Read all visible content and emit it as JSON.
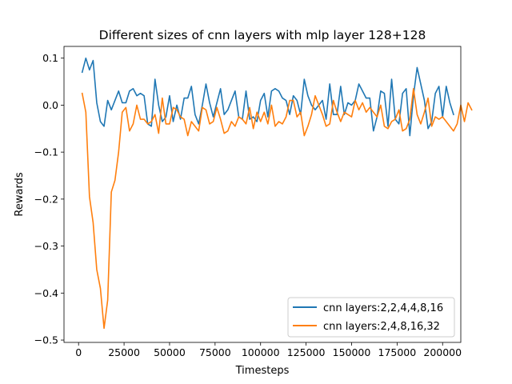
{
  "chart_data": {
    "type": "line",
    "title": "Different sizes of cnn layers with mlp layer 128+128",
    "xlabel": "Timesteps",
    "ylabel": "Rewards",
    "xlim": [
      -8000,
      210000
    ],
    "ylim": [
      -0.505,
      0.125
    ],
    "xticks": [
      0,
      25000,
      50000,
      75000,
      100000,
      125000,
      150000,
      175000,
      200000
    ],
    "xtick_labels": [
      "0",
      "25000",
      "50000",
      "75000",
      "100000",
      "125000",
      "150000",
      "175000",
      "200000"
    ],
    "yticks": [
      -0.5,
      -0.4,
      -0.3,
      -0.2,
      -0.1,
      0.0,
      0.1
    ],
    "ytick_labels": [
      "−0.5",
      "−0.4",
      "−0.3",
      "−0.2",
      "−0.1",
      "0.0",
      "0.1"
    ],
    "grid": false,
    "legend_position": "lower-right",
    "series": [
      {
        "name": "cnn layers:2,2,4,4,8,16",
        "color": "#1f77b4",
        "x_start": 2000,
        "x_step": 2000,
        "values": [
          0.07,
          0.1,
          0.075,
          0.095,
          0.005,
          -0.035,
          -0.045,
          0.01,
          -0.01,
          0.01,
          0.03,
          0.005,
          0.005,
          0.03,
          0.035,
          0.02,
          0.025,
          0.02,
          -0.04,
          -0.045,
          0.055,
          0.0,
          -0.035,
          -0.025,
          0.02,
          -0.035,
          0.0,
          -0.03,
          0.015,
          0.015,
          0.04,
          -0.02,
          -0.04,
          0.0,
          0.045,
          0.005,
          -0.025,
          0.005,
          0.035,
          -0.02,
          -0.01,
          0.01,
          0.03,
          -0.025,
          -0.03,
          0.03,
          -0.03,
          -0.025,
          -0.035,
          0.01,
          0.025,
          -0.025,
          0.03,
          0.035,
          0.03,
          0.015,
          0.01,
          -0.02,
          0.02,
          0.01,
          -0.02,
          0.055,
          0.02,
          0.0,
          -0.01,
          0.0,
          0.01,
          -0.03,
          0.045,
          -0.02,
          -0.02,
          0.04,
          -0.02,
          0.005,
          0.0,
          0.01,
          0.045,
          0.03,
          0.015,
          0.015,
          -0.055,
          -0.025,
          0.03,
          0.025,
          -0.045,
          0.055,
          -0.03,
          -0.04,
          0.025,
          0.035,
          -0.065,
          0.02,
          0.08,
          0.045,
          0.01,
          -0.05,
          -0.035,
          0.025,
          0.04,
          -0.025,
          0.04,
          0.005,
          -0.02
        ]
      },
      {
        "name": "cnn layers:2,4,8,16,32",
        "color": "#ff7f0e",
        "x_start": 2000,
        "x_step": 2000,
        "values": [
          0.025,
          -0.015,
          -0.195,
          -0.25,
          -0.35,
          -0.39,
          -0.475,
          -0.415,
          -0.185,
          -0.16,
          -0.1,
          -0.015,
          -0.005,
          -0.055,
          -0.04,
          0.0,
          -0.03,
          -0.03,
          -0.04,
          -0.035,
          -0.02,
          -0.06,
          0.015,
          -0.04,
          -0.04,
          -0.005,
          -0.01,
          -0.025,
          -0.03,
          -0.065,
          -0.035,
          -0.045,
          -0.055,
          -0.005,
          -0.01,
          -0.04,
          -0.035,
          -0.005,
          -0.03,
          -0.06,
          -0.055,
          -0.035,
          -0.045,
          -0.025,
          -0.03,
          -0.04,
          -0.005,
          -0.05,
          -0.015,
          -0.035,
          -0.015,
          -0.04,
          0.0,
          -0.045,
          -0.035,
          -0.04,
          -0.025,
          0.01,
          0.01,
          -0.025,
          -0.015,
          -0.065,
          -0.045,
          -0.02,
          0.02,
          0.0,
          -0.02,
          -0.045,
          -0.04,
          0.01,
          -0.015,
          -0.035,
          -0.015,
          -0.02,
          -0.025,
          0.01,
          -0.01,
          0.005,
          -0.015,
          -0.005,
          -0.015,
          -0.025,
          0.0,
          -0.045,
          -0.05,
          -0.035,
          -0.03,
          -0.01,
          -0.055,
          -0.05,
          -0.03,
          0.035,
          -0.02,
          -0.04,
          -0.015,
          0.015,
          -0.045,
          -0.025,
          -0.03,
          -0.025,
          -0.035,
          -0.045,
          -0.055,
          -0.04,
          0.0,
          -0.035,
          0.005,
          -0.01
        ]
      }
    ]
  }
}
